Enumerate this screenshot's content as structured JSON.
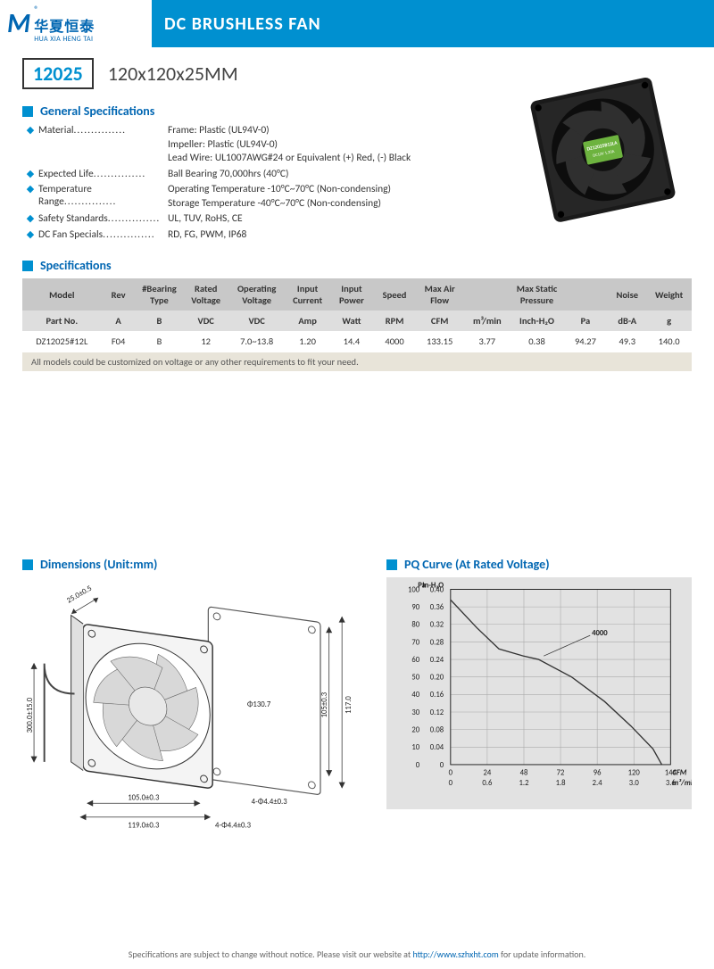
{
  "brand": {
    "zh": "华夏恒泰",
    "en": "HUA XIA HENG TAI",
    "mark": "M",
    "reg": "®"
  },
  "banner": "DC BRUSHLESS FAN",
  "model_number": "12025",
  "model_size": "120x120x25MM",
  "sections": {
    "general": "General Specifications",
    "specs": "Specifications",
    "dimensions": "Dimensions (Unit:mm)",
    "pq": "PQ Curve (At Rated Voltage)"
  },
  "general_specs": [
    {
      "label": "Material",
      "values": [
        "Frame: Plastic (UL94V-0)",
        "Impeller: Plastic (UL94V-0)",
        "Lead Wire: UL1007AWG#24 or Equivalent (+) Red, (-) Black"
      ]
    },
    {
      "label": "Expected Life",
      "values": [
        "Ball Bearing 70,000hrs (40°C)"
      ]
    },
    {
      "label": "Temperature Range",
      "values": [
        "Operating Temperature -10°C~70°C (Non-condensing)",
        "Storage Temperature -40°C~70°C (Non-condensing)"
      ]
    },
    {
      "label": "Safety Standards",
      "values": [
        "UL, TUV, RoHS, CE"
      ]
    },
    {
      "label": "DC Fan Specials",
      "values": [
        "RD, FG, PWM, IP68"
      ]
    }
  ],
  "spec_table": {
    "hdr1": [
      "Model",
      "Rev",
      "#Bearing Type",
      "Rated Voltage",
      "Operating Voltage",
      "Input Current",
      "Input Power",
      "Speed",
      "Max  Air  Flow",
      "",
      "Max Static  Pressure",
      "",
      "Noise",
      "Weight"
    ],
    "hdr2": [
      "Part No.",
      "A",
      "B",
      "VDC",
      "VDC",
      "Amp",
      "Watt",
      "RPM",
      "CFM",
      "m³/min",
      "Inch-H₂O",
      "Pa",
      "dB-A",
      "g"
    ],
    "row": [
      "DZ12025#12L",
      "F04",
      "B",
      "12",
      "7.0~13.8",
      "1.20",
      "14.4",
      "4000",
      "133.15",
      "3.77",
      "0.38",
      "94.27",
      "49.3",
      "140.0"
    ],
    "note": "All models could be customized on voltage or any other requirements to fit your need."
  },
  "dimensions": {
    "depth": "25.0±0.5",
    "wire": "300.0±15.0",
    "bolt_circle": "Φ130.7",
    "mount_w": "105.0±0.3",
    "outer_w": "119.0±0.3",
    "mount_h": "105±0.3",
    "outer_h": "117.0",
    "hole1": "4-Φ4.4±0.3",
    "hole2": "4-Φ4.4±0.3"
  },
  "pq_chart": {
    "y_left_label": "Pa",
    "y_right_label": "In-H₂O",
    "y_pa": [
      100,
      90,
      80,
      70,
      60,
      50,
      40,
      30,
      20,
      10,
      0
    ],
    "y_inh2o": [
      "0.40",
      "0.36",
      "0.32",
      "0.28",
      "0.24",
      "0.20",
      "0.16",
      "0.12",
      "0.08",
      "0.04",
      "0"
    ],
    "x_cfm": [
      "0",
      "24",
      "48",
      "72",
      "96",
      "120",
      "144"
    ],
    "x_m3": [
      "0",
      "0.6",
      "1.2",
      "1.8",
      "2.4",
      "3.0",
      "3.6"
    ],
    "x_label_cfm": "CFM",
    "x_label_m3": "m³/min",
    "series_label": "4000",
    "curve_pts": [
      [
        0,
        0.94
      ],
      [
        0.12,
        0.78
      ],
      [
        0.22,
        0.66
      ],
      [
        0.33,
        0.62
      ],
      [
        0.4,
        0.6
      ],
      [
        0.55,
        0.5
      ],
      [
        0.7,
        0.36
      ],
      [
        0.82,
        0.22
      ],
      [
        0.92,
        0.09
      ],
      [
        0.96,
        0.0
      ]
    ],
    "bg": "#e2e2e2",
    "grid": "#aaaaaa",
    "axis": "#222222",
    "curve": "#333333"
  },
  "product_label": {
    "model": "DZ12025B12LA",
    "volt": "DC12V   1.20A"
  },
  "footer": {
    "text1": "Specifications are subject to change without notice. Please visit our website at ",
    "url": "http://www.szhxht.com",
    "text2": " for update information."
  }
}
